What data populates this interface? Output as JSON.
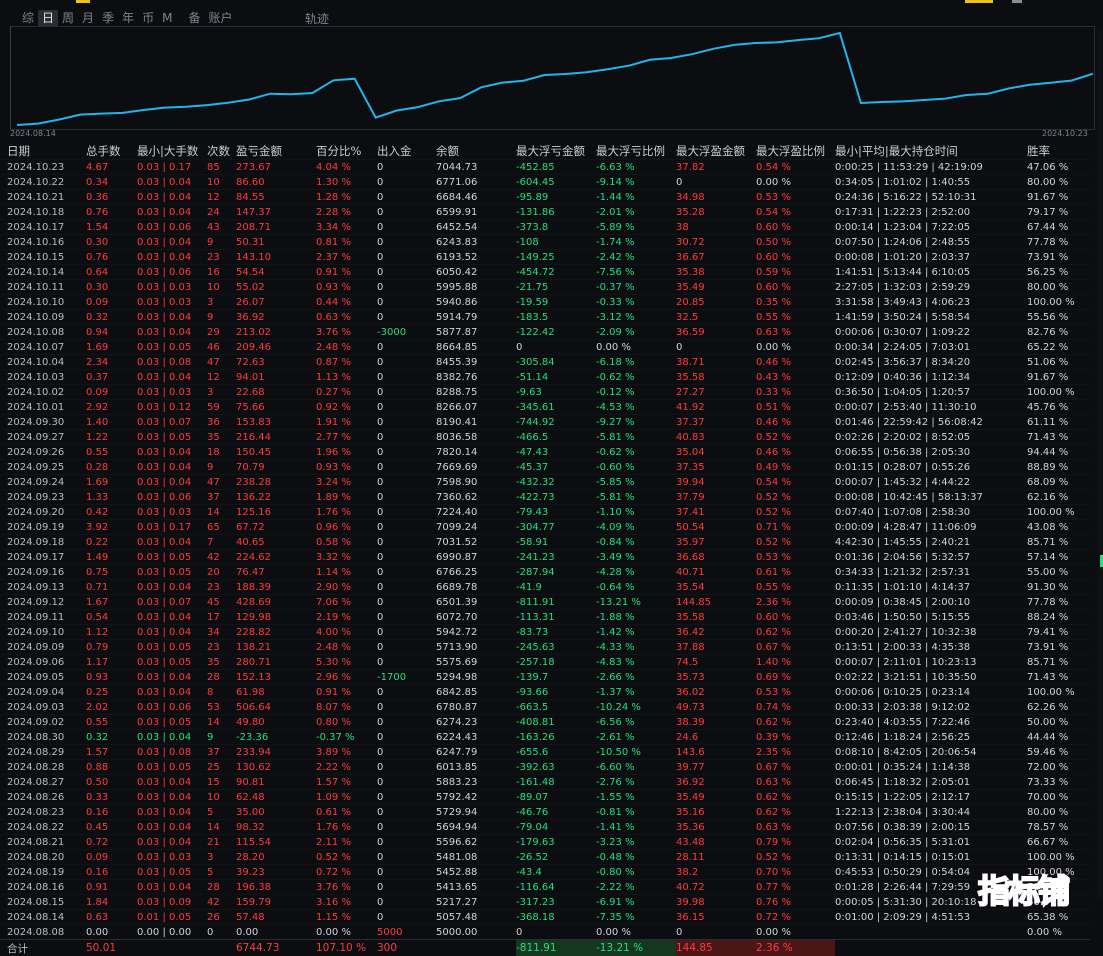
{
  "period_tabs": [
    "综",
    "日",
    "周",
    "月",
    "季",
    "年",
    "币",
    "M",
    "备",
    "账户"
  ],
  "active_tab": "日",
  "track_tab": "轨迹",
  "chart": {
    "start_date": "2024.08.14",
    "end_date": "2024.10.23",
    "line_color": "#1fb6ee"
  },
  "headers": [
    "日期",
    "总手数",
    "最小|大手数",
    "次数",
    "盈亏金额",
    "百分比%",
    "出入金",
    "余额",
    "最大浮亏金额",
    "最大浮亏比例",
    "最大浮盈金额",
    "最大浮盈比例",
    "最小|平均|最大持仓时间",
    "胜率"
  ],
  "rows": [
    [
      "2024.10.23",
      "4.67",
      "0.03 | 0.17",
      "85",
      "273.67",
      "4.04 %",
      "0",
      "7044.73",
      "-452.85",
      "-6.63 %",
      "37.82",
      "0.54 %",
      "0:00:25 | 11:53:29 | 42:19:09",
      "47.06 %"
    ],
    [
      "2024.10.22",
      "0.34",
      "0.03 | 0.04",
      "10",
      "86.60",
      "1.30 %",
      "0",
      "6771.06",
      "-604.45",
      "-9.14 %",
      "0",
      "0.00 %",
      "0:34:05 | 1:01:02 | 1:40:55",
      "80.00 %"
    ],
    [
      "2024.10.21",
      "0.36",
      "0.03 | 0.04",
      "12",
      "84.55",
      "1.28 %",
      "0",
      "6684.46",
      "-95.89",
      "-1.44 %",
      "34.98",
      "0.53 %",
      "0:24:36 | 5:16:22 | 52:10:31",
      "91.67 %"
    ],
    [
      "2024.10.18",
      "0.76",
      "0.03 | 0.04",
      "24",
      "147.37",
      "2.28 %",
      "0",
      "6599.91",
      "-131.86",
      "-2.01 %",
      "35.28",
      "0.54 %",
      "0:17:31 | 1:22:23 | 2:52:00",
      "79.17 %"
    ],
    [
      "2024.10.17",
      "1.54",
      "0.03 | 0.06",
      "43",
      "208.71",
      "3.34 %",
      "0",
      "6452.54",
      "-373.8",
      "-5.89 %",
      "38",
      "0.60 %",
      "0:00:14 | 1:23:04 | 7:22:05",
      "67.44 %"
    ],
    [
      "2024.10.16",
      "0.30",
      "0.03 | 0.04",
      "9",
      "50.31",
      "0.81 %",
      "0",
      "6243.83",
      "-108",
      "-1.74 %",
      "30.72",
      "0.50 %",
      "0:07:50 | 1:24:06 | 2:48:55",
      "77.78 %"
    ],
    [
      "2024.10.15",
      "0.76",
      "0.03 | 0.04",
      "23",
      "143.10",
      "2.37 %",
      "0",
      "6193.52",
      "-149.25",
      "-2.42 %",
      "36.67",
      "0.60 %",
      "0:00:08 | 1:01:20 | 2:03:37",
      "73.91 %"
    ],
    [
      "2024.10.14",
      "0.64",
      "0.03 | 0.06",
      "16",
      "54.54",
      "0.91 %",
      "0",
      "6050.42",
      "-454.72",
      "-7.56 %",
      "35.38",
      "0.59 %",
      "1:41:51 | 5:13:44 | 6:10:05",
      "56.25 %"
    ],
    [
      "2024.10.11",
      "0.30",
      "0.03 | 0.03",
      "10",
      "55.02",
      "0.93 %",
      "0",
      "5995.88",
      "-21.75",
      "-0.37 %",
      "35.49",
      "0.60 %",
      "2:27:05 | 1:32:03 | 2:59:29",
      "80.00 %"
    ],
    [
      "2024.10.10",
      "0.09",
      "0.03 | 0.03",
      "3",
      "26.07",
      "0.44 %",
      "0",
      "5940.86",
      "-19.59",
      "-0.33 %",
      "20.85",
      "0.35 %",
      "3:31:58 | 3:49:43 | 4:06:23",
      "100.00 %"
    ],
    [
      "2024.10.09",
      "0.32",
      "0.03 | 0.04",
      "9",
      "36.92",
      "0.63 %",
      "0",
      "5914.79",
      "-183.5",
      "-3.12 %",
      "32.5",
      "0.55 %",
      "1:41:59 | 3:50:24 | 5:58:54",
      "55.56 %"
    ],
    [
      "2024.10.08",
      "0.94",
      "0.03 | 0.04",
      "29",
      "213.02",
      "3.76 %",
      "-3000",
      "5877.87",
      "-122.42",
      "-2.09 %",
      "36.59",
      "0.63 %",
      "0:00:06 | 0:30:07 | 1:09:22",
      "82.76 %"
    ],
    [
      "2024.10.07",
      "1.69",
      "0.03 | 0.05",
      "46",
      "209.46",
      "2.48 %",
      "0",
      "8664.85",
      "0",
      "0.00 %",
      "0",
      "0.00 %",
      "0:00:34 | 2:24:05 | 7:03:01",
      "65.22 %"
    ],
    [
      "2024.10.04",
      "2.34",
      "0.03 | 0.08",
      "47",
      "72.63",
      "0.87 %",
      "0",
      "8455.39",
      "-305.84",
      "-6.18 %",
      "38.71",
      "0.46 %",
      "0:02:45 | 3:56:37 | 8:34:20",
      "51.06 %"
    ],
    [
      "2024.10.03",
      "0.37",
      "0.03 | 0.04",
      "12",
      "94.01",
      "1.13 %",
      "0",
      "8382.76",
      "-51.14",
      "-0.62 %",
      "35.58",
      "0.43 %",
      "0:12:09 | 0:40:36 | 1:12:34",
      "91.67 %"
    ],
    [
      "2024.10.02",
      "0.09",
      "0.03 | 0.03",
      "3",
      "22.68",
      "0.27 %",
      "0",
      "8288.75",
      "-9.63",
      "-0.12 %",
      "27.27",
      "0.33 %",
      "0:36:50 | 1:04:05 | 1:20:57",
      "100.00 %"
    ],
    [
      "2024.10.01",
      "2.92",
      "0.03 | 0.12",
      "59",
      "75.66",
      "0.92 %",
      "0",
      "8266.07",
      "-345.61",
      "-4.53 %",
      "41.92",
      "0.51 %",
      "0:00:07 | 2:53:40 | 11:30:10",
      "45.76 %"
    ],
    [
      "2024.09.30",
      "1.40",
      "0.03 | 0.07",
      "36",
      "153.83",
      "1.91 %",
      "0",
      "8190.41",
      "-744.92",
      "-9.27 %",
      "37.37",
      "0.46 %",
      "0:01:46 | 22:59:42 | 56:08:42",
      "61.11 %"
    ],
    [
      "2024.09.27",
      "1.22",
      "0.03 | 0.05",
      "35",
      "216.44",
      "2.77 %",
      "0",
      "8036.58",
      "-466.5",
      "-5.81 %",
      "40.83",
      "0.52 %",
      "0:02:26 | 2:20:02 | 8:52:05",
      "71.43 %"
    ],
    [
      "2024.09.26",
      "0.55",
      "0.03 | 0.04",
      "18",
      "150.45",
      "1.96 %",
      "0",
      "7820.14",
      "-47.43",
      "-0.62 %",
      "35.04",
      "0.46 %",
      "0:06:55 | 0:56:38 | 2:05:30",
      "94.44 %"
    ],
    [
      "2024.09.25",
      "0.28",
      "0.03 | 0.04",
      "9",
      "70.79",
      "0.93 %",
      "0",
      "7669.69",
      "-45.37",
      "-0.60 %",
      "37.35",
      "0.49 %",
      "0:01:15 | 0:28:07 | 0:55:26",
      "88.89 %"
    ],
    [
      "2024.09.24",
      "1.69",
      "0.03 | 0.04",
      "47",
      "238.28",
      "3.24 %",
      "0",
      "7598.90",
      "-432.32",
      "-5.85 %",
      "39.94",
      "0.54 %",
      "0:00:07 | 1:45:32 | 4:44:22",
      "68.09 %"
    ],
    [
      "2024.09.23",
      "1.33",
      "0.03 | 0.06",
      "37",
      "136.22",
      "1.89 %",
      "0",
      "7360.62",
      "-422.73",
      "-5.81 %",
      "37.79",
      "0.52 %",
      "0:00:08 | 10:42:45 | 58:13:37",
      "62.16 %"
    ],
    [
      "2024.09.20",
      "0.42",
      "0.03 | 0.03",
      "14",
      "125.16",
      "1.76 %",
      "0",
      "7224.40",
      "-79.43",
      "-1.10 %",
      "37.41",
      "0.52 %",
      "0:07:40 | 1:07:08 | 2:58:30",
      "100.00 %"
    ],
    [
      "2024.09.19",
      "3.92",
      "0.03 | 0.17",
      "65",
      "67.72",
      "0.96 %",
      "0",
      "7099.24",
      "-304.77",
      "-4.09 %",
      "50.54",
      "0.71 %",
      "0:00:09 | 4:28:47 | 11:06:09",
      "43.08 %"
    ],
    [
      "2024.09.18",
      "0.22",
      "0.03 | 0.04",
      "7",
      "40.65",
      "0.58 %",
      "0",
      "7031.52",
      "-58.91",
      "-0.84 %",
      "35.97",
      "0.52 %",
      "4:42:30 | 1:45:55 | 2:40:21",
      "85.71 %"
    ],
    [
      "2024.09.17",
      "1.49",
      "0.03 | 0.05",
      "42",
      "224.62",
      "3.32 %",
      "0",
      "6990.87",
      "-241.23",
      "-3.49 %",
      "36.68",
      "0.53 %",
      "0:01:36 | 2:04:56 | 5:32:57",
      "57.14 %"
    ],
    [
      "2024.09.16",
      "0.75",
      "0.03 | 0.05",
      "20",
      "76.47",
      "1.14 %",
      "0",
      "6766.25",
      "-287.94",
      "-4.28 %",
      "40.71",
      "0.61 %",
      "0:34:33 | 1:21:32 | 2:57:31",
      "55.00 %"
    ],
    [
      "2024.09.13",
      "0.71",
      "0.03 | 0.04",
      "23",
      "188.39",
      "2.90 %",
      "0",
      "6689.78",
      "-41.9",
      "-0.64 %",
      "35.54",
      "0.55 %",
      "0:11:35 | 1:01:10 | 4:14:37",
      "91.30 %"
    ],
    [
      "2024.09.12",
      "1.67",
      "0.03 | 0.07",
      "45",
      "428.69",
      "7.06 %",
      "0",
      "6501.39",
      "-811.91",
      "-13.21 %",
      "144.85",
      "2.36 %",
      "0:00:09 | 0:38:45 | 2:00:10",
      "77.78 %"
    ],
    [
      "2024.09.11",
      "0.54",
      "0.03 | 0.04",
      "17",
      "129.98",
      "2.19 %",
      "0",
      "6072.70",
      "-113.31",
      "-1.88 %",
      "35.58",
      "0.60 %",
      "0:03:46 | 1:50:50 | 5:15:55",
      "88.24 %"
    ],
    [
      "2024.09.10",
      "1.12",
      "0.03 | 0.04",
      "34",
      "228.82",
      "4.00 %",
      "0",
      "5942.72",
      "-83.73",
      "-1.42 %",
      "36.42",
      "0.62 %",
      "0:00:20 | 2:41:27 | 10:32:38",
      "79.41 %"
    ],
    [
      "2024.09.09",
      "0.79",
      "0.03 | 0.05",
      "23",
      "138.21",
      "2.48 %",
      "0",
      "5713.90",
      "-245.63",
      "-4.33 %",
      "37.88",
      "0.67 %",
      "0:13:51 | 2:00:33 | 4:35:38",
      "73.91 %"
    ],
    [
      "2024.09.06",
      "1.17",
      "0.03 | 0.05",
      "35",
      "280.71",
      "5.30 %",
      "0",
      "5575.69",
      "-257.18",
      "-4.83 %",
      "74.5",
      "1.40 %",
      "0:00:07 | 2:11:01 | 10:23:13",
      "85.71 %"
    ],
    [
      "2024.09.05",
      "0.93",
      "0.03 | 0.04",
      "28",
      "152.13",
      "2.96 %",
      "-1700",
      "5294.98",
      "-139.7",
      "-2.66 %",
      "35.73",
      "0.69 %",
      "0:02:22 | 3:21:51 | 10:35:50",
      "71.43 %"
    ],
    [
      "2024.09.04",
      "0.25",
      "0.03 | 0.04",
      "8",
      "61.98",
      "0.91 %",
      "0",
      "6842.85",
      "-93.66",
      "-1.37 %",
      "36.02",
      "0.53 %",
      "0:00:06 | 0:10:25 | 0:23:14",
      "100.00 %"
    ],
    [
      "2024.09.03",
      "2.02",
      "0.03 | 0.06",
      "53",
      "506.64",
      "8.07 %",
      "0",
      "6780.87",
      "-663.5",
      "-10.24 %",
      "49.73",
      "0.74 %",
      "0:00:33 | 2:03:38 | 9:12:02",
      "62.26 %"
    ],
    [
      "2024.09.02",
      "0.55",
      "0.03 | 0.05",
      "14",
      "49.80",
      "0.80 %",
      "0",
      "6274.23",
      "-408.81",
      "-6.56 %",
      "38.39",
      "0.62 %",
      "0:23:40 | 4:03:55 | 7:22:46",
      "50.00 %"
    ],
    [
      "2024.08.30",
      "0.32",
      "0.03 | 0.04",
      "9",
      "-23.36",
      "-0.37 %",
      "0",
      "6224.43",
      "-163.26",
      "-2.61 %",
      "24.6",
      "0.39 %",
      "0:12:46 | 1:18:24 | 2:56:25",
      "44.44 %"
    ],
    [
      "2024.08.29",
      "1.57",
      "0.03 | 0.08",
      "37",
      "233.94",
      "3.89 %",
      "0",
      "6247.79",
      "-655.6",
      "-10.50 %",
      "143.6",
      "2.35 %",
      "0:08:10 | 8:42:05 | 20:06:54",
      "59.46 %"
    ],
    [
      "2024.08.28",
      "0.88",
      "0.03 | 0.05",
      "25",
      "130.62",
      "2.22 %",
      "0",
      "6013.85",
      "-392.63",
      "-6.60 %",
      "39.77",
      "0.67 %",
      "0:00:01 | 0:35:24 | 1:14:38",
      "72.00 %"
    ],
    [
      "2024.08.27",
      "0.50",
      "0.03 | 0.04",
      "15",
      "90.81",
      "1.57 %",
      "0",
      "5883.23",
      "-161.48",
      "-2.76 %",
      "36.92",
      "0.63 %",
      "0:06:45 | 1:18:32 | 2:05:01",
      "73.33 %"
    ],
    [
      "2024.08.26",
      "0.33",
      "0.03 | 0.04",
      "10",
      "62.48",
      "1.09 %",
      "0",
      "5792.42",
      "-89.07",
      "-1.55 %",
      "35.49",
      "0.62 %",
      "0:15:15 | 1:22:05 | 2:12:17",
      "70.00 %"
    ],
    [
      "2024.08.23",
      "0.16",
      "0.03 | 0.04",
      "5",
      "35.00",
      "0.61 %",
      "0",
      "5729.94",
      "-46.76",
      "-0.81 %",
      "35.16",
      "0.62 %",
      "1:22:13 | 2:38:04 | 3:30:44",
      "80.00 %"
    ],
    [
      "2024.08.22",
      "0.45",
      "0.03 | 0.04",
      "14",
      "98.32",
      "1.76 %",
      "0",
      "5694.94",
      "-79.04",
      "-1.41 %",
      "35.36",
      "0.63 %",
      "0:07:56 | 0:38:39 | 2:00:15",
      "78.57 %"
    ],
    [
      "2024.08.21",
      "0.72",
      "0.03 | 0.04",
      "21",
      "115.54",
      "2.11 %",
      "0",
      "5596.62",
      "-179.63",
      "-3.23 %",
      "43.48",
      "0.79 %",
      "0:02:04 | 0:56:35 | 5:31:01",
      "66.67 %"
    ],
    [
      "2024.08.20",
      "0.09",
      "0.03 | 0.03",
      "3",
      "28.20",
      "0.52 %",
      "0",
      "5481.08",
      "-26.52",
      "-0.48 %",
      "28.11",
      "0.52 %",
      "0:13:31 | 0:14:15 | 0:15:01",
      "100.00 %"
    ],
    [
      "2024.08.19",
      "0.16",
      "0.03 | 0.05",
      "5",
      "39.23",
      "0.72 %",
      "0",
      "5452.88",
      "-43.4",
      "-0.80 %",
      "38.2",
      "0.70 %",
      "0:45:53 | 0:50:29 | 0:54:04",
      "100.00 %"
    ],
    [
      "2024.08.16",
      "0.91",
      "0.03 | 0.04",
      "28",
      "196.38",
      "3.76 %",
      "0",
      "5413.65",
      "-116.64",
      "-2.22 %",
      "40.72",
      "0.77 %",
      "0:01:28 | 2:26:44 | 7:29:59",
      "78.57 %"
    ],
    [
      "2024.08.15",
      "1.84",
      "0.03 | 0.09",
      "42",
      "159.79",
      "3.16 %",
      "0",
      "5217.27",
      "-317.23",
      "-6.91 %",
      "39.98",
      "0.76 %",
      "0:00:05 | 5:31:30 | 20:10:18",
      "66.67 %"
    ],
    [
      "2024.08.14",
      "0.63",
      "0.01 | 0.05",
      "26",
      "57.48",
      "1.15 %",
      "0",
      "5057.48",
      "-368.18",
      "-7.35 %",
      "36.15",
      "0.72 %",
      "0:01:00 | 2:09:29 | 4:51:53",
      "65.38 %"
    ],
    [
      "2024.08.08",
      "0.00",
      "0.00 | 0.00",
      "0",
      "0.00",
      "0.00 %",
      "5000",
      "5000.00",
      "0",
      "0.00 %",
      "0",
      "0.00 %",
      "",
      "0.00 %"
    ]
  ],
  "total": [
    "合计",
    "50.01",
    "",
    "",
    "6744.73",
    "107.10 %",
    "300",
    "",
    "-811.91",
    "-13.21 %",
    "144.85",
    "2.36 %",
    "",
    ""
  ],
  "watermark": "指标铺",
  "colors": {
    "positive": "#ff3b3b",
    "negative": "#1ee37c",
    "line": "#1fb6ee",
    "background": "#0c0d10"
  }
}
